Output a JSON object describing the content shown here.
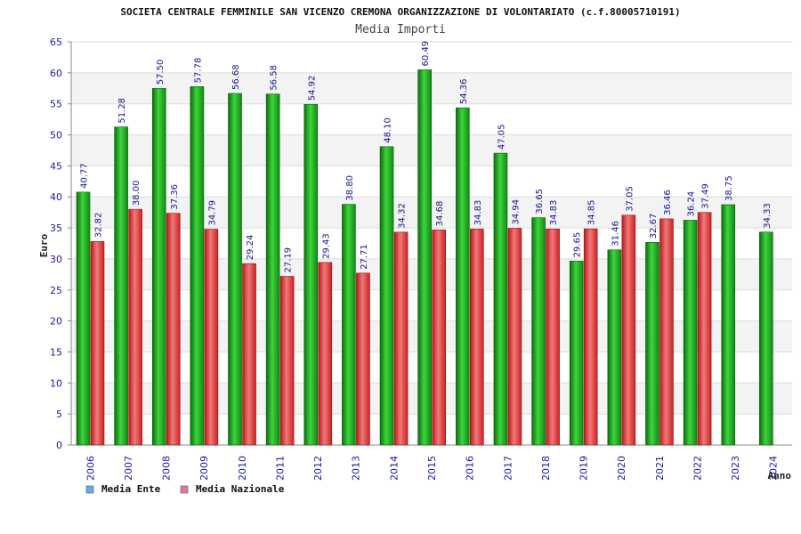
{
  "chart_data": {
    "type": "bar",
    "title": "SOCIETA CENTRALE FEMMINILE SAN VICENZO CREMONA ORGANIZZAZIONE DI VOLONTARIATO (c.f.80005710191)",
    "subtitle": "Media Importi",
    "xlabel": "Anno",
    "ylabel": "Euro",
    "ylim": [
      0,
      65
    ],
    "yticks": [
      0,
      5,
      10,
      15,
      20,
      25,
      30,
      35,
      40,
      45,
      50,
      55,
      60,
      65
    ],
    "grid": true,
    "legend_position": "bottom-left",
    "categories": [
      "2006",
      "2007",
      "2008",
      "2009",
      "2010",
      "2011",
      "2012",
      "2013",
      "2014",
      "2015",
      "2016",
      "2017",
      "2018",
      "2019",
      "2020",
      "2021",
      "2022",
      "2023",
      "2024"
    ],
    "series": [
      {
        "name": "Media Ente",
        "bar_color": "#1fa81f",
        "legend_color": "#6aa8e8",
        "values": [
          40.77,
          51.28,
          57.5,
          57.78,
          56.68,
          56.58,
          54.92,
          38.8,
          48.1,
          60.49,
          54.36,
          47.05,
          36.65,
          29.65,
          31.46,
          32.67,
          36.24,
          38.75,
          34.33
        ],
        "labels": [
          "40.77",
          "51.28",
          "57.50",
          "57.78",
          "56.68",
          "56.58",
          "54.92",
          "38.80",
          "48.10",
          "60.49",
          "54.36",
          "47.05",
          "36.65",
          "29.65",
          "31.46",
          "32.67",
          "36.24",
          "38.75",
          "34.33"
        ]
      },
      {
        "name": "Media Nazionale",
        "bar_color": "#e02828",
        "legend_color": "#e07aa0",
        "values": [
          32.82,
          38.0,
          37.36,
          34.79,
          29.24,
          27.19,
          29.43,
          27.71,
          34.32,
          34.68,
          34.83,
          34.94,
          34.83,
          34.85,
          37.05,
          36.46,
          37.49,
          null,
          null
        ],
        "labels": [
          "32.82",
          "38.00",
          "37.36",
          "34.79",
          "29.24",
          "27.19",
          "29.43",
          "27.71",
          "34.32",
          "34.68",
          "34.83",
          "34.94",
          "34.83",
          "34.85",
          "37.05",
          "36.46",
          "37.49",
          null,
          null
        ]
      }
    ]
  }
}
